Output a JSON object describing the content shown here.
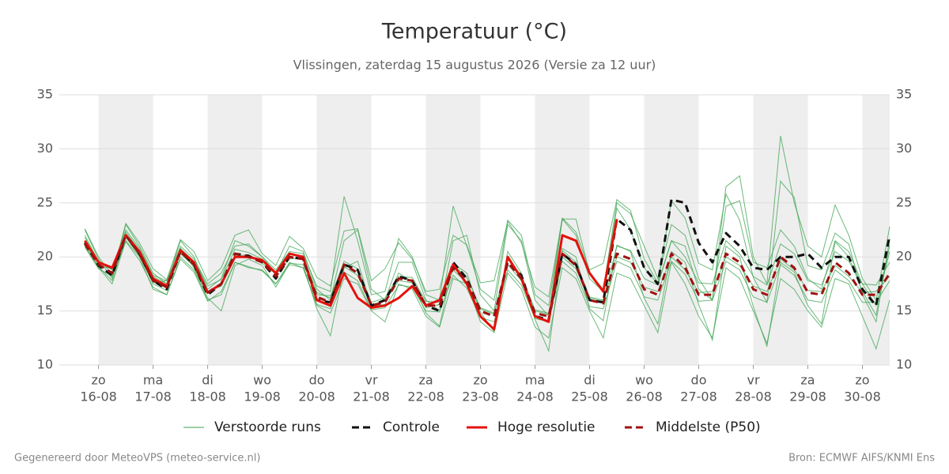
{
  "chart_data": {
    "type": "line",
    "title": "Temperatuur (°C)",
    "subtitle": "Vlissingen, zaterdag 15 augustus 2026 (Versie za 12 uur)",
    "footer_left": "Gegenereerd door MeteoVPS (meteo-service.nl)",
    "footer_right": "Bron: ECMWF AIFS/KNMI Ens",
    "x": [
      "15-08 18:00",
      "16-08 00:00",
      "16-08 06:00",
      "16-08 12:00",
      "16-08 18:00",
      "17-08 00:00",
      "17-08 06:00",
      "17-08 12:00",
      "17-08 18:00",
      "18-08 00:00",
      "18-08 06:00",
      "18-08 12:00",
      "18-08 18:00",
      "19-08 00:00",
      "19-08 06:00",
      "19-08 12:00",
      "19-08 18:00",
      "20-08 00:00",
      "20-08 06:00",
      "20-08 12:00",
      "20-08 18:00",
      "21-08 00:00",
      "21-08 06:00",
      "21-08 12:00",
      "21-08 18:00",
      "22-08 00:00",
      "22-08 06:00",
      "22-08 12:00",
      "22-08 18:00",
      "23-08 00:00",
      "23-08 06:00",
      "23-08 12:00",
      "23-08 18:00",
      "24-08 00:00",
      "24-08 06:00",
      "24-08 12:00",
      "24-08 18:00",
      "25-08 00:00",
      "25-08 06:00",
      "25-08 12:00",
      "25-08 18:00",
      "26-08 00:00",
      "26-08 06:00",
      "26-08 12:00",
      "26-08 18:00",
      "27-08 00:00",
      "27-08 06:00",
      "27-08 12:00",
      "27-08 18:00",
      "28-08 00:00",
      "28-08 06:00",
      "28-08 12:00",
      "28-08 18:00",
      "29-08 00:00",
      "29-08 06:00",
      "29-08 12:00",
      "29-08 18:00",
      "30-08 00:00",
      "30-08 06:00",
      "30-08 12:00"
    ],
    "xlim": [
      "15-08 06:45",
      "30-08 12:00"
    ],
    "xticks": [
      {
        "value": "16-08 00:00",
        "label": [
          "zo",
          "16-08"
        ]
      },
      {
        "value": "17-08 00:00",
        "label": [
          "ma",
          "17-08"
        ]
      },
      {
        "value": "18-08 00:00",
        "label": [
          "di",
          "18-08"
        ]
      },
      {
        "value": "19-08 00:00",
        "label": [
          "wo",
          "19-08"
        ]
      },
      {
        "value": "20-08 00:00",
        "label": [
          "do",
          "20-08"
        ]
      },
      {
        "value": "21-08 00:00",
        "label": [
          "vr",
          "21-08"
        ]
      },
      {
        "value": "22-08 00:00",
        "label": [
          "za",
          "22-08"
        ]
      },
      {
        "value": "23-08 00:00",
        "label": [
          "zo",
          "23-08"
        ]
      },
      {
        "value": "24-08 00:00",
        "label": [
          "ma",
          "24-08"
        ]
      },
      {
        "value": "25-08 00:00",
        "label": [
          "di",
          "25-08"
        ]
      },
      {
        "value": "26-08 00:00",
        "label": [
          "wo",
          "26-08"
        ]
      },
      {
        "value": "27-08 00:00",
        "label": [
          "do",
          "27-08"
        ]
      },
      {
        "value": "28-08 00:00",
        "label": [
          "vr",
          "28-08"
        ]
      },
      {
        "value": "29-08 00:00",
        "label": [
          "za",
          "29-08"
        ]
      },
      {
        "value": "30-08 00:00",
        "label": [
          "zo",
          "30-08"
        ]
      }
    ],
    "ylim": [
      10,
      35
    ],
    "yticks": [
      10,
      15,
      20,
      25,
      30,
      35
    ],
    "grid": true,
    "ensemble": {
      "name": "Verstoorde runs",
      "color": "#3aa34f",
      "members": [
        [
          22.5,
          19.8,
          18,
          23,
          21,
          18.5,
          17.5,
          21.5,
          20,
          17,
          18,
          21.5,
          21,
          20,
          18.5,
          21,
          20.5,
          17,
          16,
          21.5,
          22.5,
          17,
          16,
          19.5,
          19.5,
          16,
          15,
          21.5,
          22,
          16.5,
          15,
          23,
          21.5,
          16,
          14.5,
          23.5,
          23.5,
          18.5,
          17,
          25,
          24,
          21,
          18,
          23,
          22,
          18,
          16,
          26.5,
          27.5,
          20,
          17.5,
          31.2,
          25,
          21,
          20,
          24.8,
          22,
          18,
          16,
          22.8
        ],
        [
          21,
          19,
          17.5,
          21.5,
          20,
          17,
          16.5,
          20,
          18.8,
          16,
          16.5,
          19.5,
          19,
          18.8,
          17.5,
          19.5,
          19,
          15.5,
          14.8,
          18,
          17.5,
          15,
          14,
          17.5,
          17,
          14.5,
          13.5,
          18,
          17.5,
          14,
          13,
          18.5,
          17,
          13.5,
          12.5,
          19,
          18,
          15,
          12.5,
          18.5,
          18,
          15.5,
          13,
          19.5,
          17.5,
          14.5,
          12.5,
          19,
          18,
          15,
          12,
          18,
          17,
          15,
          13.5,
          18,
          17.5,
          14.5,
          11.5,
          16
        ],
        [
          21.8,
          19.5,
          19,
          22.5,
          20.8,
          18.3,
          17.8,
          21,
          19.8,
          17.5,
          18.5,
          21,
          21.2,
          20,
          18.8,
          20.5,
          20.3,
          17.3,
          16.8,
          25.6,
          21.5,
          16.5,
          16.8,
          21.7,
          20,
          16.5,
          16,
          24.7,
          21,
          17,
          16,
          23.4,
          22,
          16.5,
          15.5,
          23.5,
          22,
          18,
          16.8,
          24.5,
          22.5,
          19,
          17.5,
          21.5,
          21,
          17,
          16,
          24.7,
          25.2,
          19.5,
          19,
          22.5,
          21,
          18,
          17,
          21.5,
          20.5,
          17.5,
          15.5,
          20.5
        ],
        [
          21.4,
          19.1,
          17.8,
          21.8,
          20.1,
          17.5,
          16.9,
          20.8,
          19,
          16.2,
          15,
          19.2,
          19.8,
          19.2,
          17.2,
          19.4,
          19.3,
          15.2,
          12.7,
          19,
          19.6,
          15.4,
          15.6,
          18.5,
          17.7,
          14.8,
          13.6,
          19.4,
          18.5,
          14.9,
          13.1,
          20.5,
          18.5,
          14.2,
          11.3,
          20.8,
          20,
          15.2,
          14.1,
          21.1,
          20.5,
          16.2,
          13.8,
          20.5,
          19.5,
          15.6,
          12.3,
          21,
          20,
          15.4,
          11.7,
          19.5,
          18.6,
          15.5,
          13.8,
          21.4,
          20,
          16.8,
          14.6,
          21.1
        ],
        [
          22,
          19.6,
          18.8,
          22.3,
          20.6,
          18.2,
          17.5,
          20.8,
          19.6,
          17.3,
          17.9,
          20.7,
          20.4,
          19.8,
          18.6,
          20.2,
          20.1,
          16.7,
          16.2,
          19.6,
          18.9,
          15.8,
          16.2,
          18.2,
          18.1,
          15.9,
          15.8,
          19.3,
          18.1,
          15.3,
          14.8,
          19.8,
          18.3,
          15.1,
          14.8,
          20.6,
          19.5,
          16.3,
          16,
          21,
          20.6,
          18,
          17.4,
          21.5,
          20,
          17.6,
          17.5,
          21.5,
          20.3,
          18.2,
          17.4,
          21.2,
          20.3,
          17.8,
          17.4,
          20.5,
          19.6,
          17.5,
          17.4,
          19.5
        ],
        [
          20.9,
          18.9,
          18.2,
          21.4,
          19.7,
          17.2,
          16.5,
          19.8,
          18.6,
          15.9,
          16.8,
          19.5,
          19.1,
          18.7,
          17.5,
          19.3,
          19,
          15.6,
          15.2,
          18.6,
          17.8,
          15.1,
          15.3,
          17.4,
          17.2,
          15,
          14.9,
          18.3,
          17.1,
          14.4,
          14,
          18.8,
          17.4,
          14.3,
          14,
          19.6,
          18.5,
          15.4,
          15.2,
          19.6,
          19,
          16.3,
          16,
          19.6,
          18.4,
          15.9,
          16,
          19.6,
          18.8,
          16.3,
          15.8,
          19.3,
          18.3,
          16,
          15.8,
          18.8,
          17.8,
          15.8,
          15.8,
          17.8
        ],
        [
          22.6,
          20,
          18.3,
          23.1,
          21.3,
          18.9,
          17.9,
          21.6,
          20.5,
          17.8,
          19,
          22,
          22.5,
          20.3,
          19.2,
          21.9,
          20.8,
          18.1,
          17.3,
          22.4,
          22.6,
          17.8,
          18.9,
          21.3,
          19.8,
          16.8,
          17,
          22,
          21.1,
          17.6,
          17.8,
          23.3,
          21.3,
          17.2,
          16.3,
          23.6,
          22.3,
          18.8,
          19.4,
          25.3,
          24.3,
          19.8,
          17.6,
          25.2,
          23.6,
          19.4,
          18.8,
          25.8,
          23.4,
          18.1,
          15.8,
          27,
          25.5,
          19.2,
          18.8,
          22.2,
          21.2,
          16.5,
          14,
          21.7
        ],
        [
          21.1,
          19.2,
          18.9,
          21.9,
          20.3,
          17.6,
          17.8,
          20.3,
          19.1,
          16.8,
          17.3,
          20.1,
          20.2,
          19.4,
          18.4,
          19.8,
          19.9,
          16.5,
          16.4,
          19.1,
          18.3,
          15.6,
          15.9,
          17.8,
          17.6,
          15.3,
          15.6,
          18.8,
          17.6,
          15.2,
          14.7,
          19.3,
          17.8,
          15,
          14.7,
          20,
          18.9,
          16.2,
          15.9,
          20,
          19.5,
          17.2,
          16.8,
          20,
          18.8,
          16.7,
          16.8,
          20,
          19.2,
          17.3,
          16.8,
          19.8,
          18.8,
          16.9,
          16.8,
          19.2,
          18.2,
          16.7,
          16.8,
          18.2
        ]
      ]
    },
    "series": [
      {
        "name": "Controle",
        "color": "#111111",
        "dash": true,
        "values": [
          21.3,
          19.2,
          18.3,
          22,
          20.3,
          17.8,
          17,
          20.5,
          19.3,
          16.5,
          17.5,
          20.3,
          20.1,
          19.5,
          18,
          20,
          19.8,
          16,
          15.8,
          19.3,
          18.8,
          15.5,
          16,
          18.2,
          17.8,
          15.5,
          15,
          19.5,
          18,
          15,
          14.5,
          19.5,
          18.3,
          14.5,
          14.2,
          20.3,
          19.3,
          16,
          15.8,
          23.5,
          22.5,
          19,
          17.5,
          25.3,
          25,
          21.3,
          19.5,
          22.2,
          21,
          19,
          18.8,
          20,
          20,
          20.3,
          19,
          20,
          20,
          17,
          15.5,
          22
        ]
      },
      {
        "name": "Hoge resolutie",
        "color": "#e3120b",
        "dash": false,
        "values": [
          21.5,
          19.5,
          19,
          22,
          20.5,
          18,
          17.3,
          20.6,
          19.5,
          16.7,
          17.5,
          20,
          20,
          19.7,
          18.5,
          20.3,
          20,
          16,
          15.5,
          18.5,
          16.2,
          15.3,
          15.5,
          16.2,
          17.3,
          15.5,
          16,
          19.3,
          17.5,
          14.5,
          13.3,
          20,
          18,
          14.5,
          14,
          22,
          21.5,
          18.5,
          16.8,
          23.5,
          null,
          null,
          null,
          null,
          null,
          null,
          null,
          null,
          null,
          null,
          null,
          null,
          null,
          null,
          null,
          null,
          null,
          null,
          null,
          null
        ]
      },
      {
        "name": "Middelste (P50)",
        "color": "#a01010",
        "dash": true,
        "values": [
          21.2,
          19.3,
          18.5,
          22,
          20.3,
          17.8,
          17.2,
          20.5,
          19.3,
          16.7,
          17.5,
          20.3,
          20,
          19.5,
          18.2,
          20,
          19.8,
          16.3,
          15.8,
          19.3,
          18.5,
          15.5,
          15.8,
          18,
          17.8,
          15.5,
          15.5,
          19,
          17.8,
          15,
          14.5,
          19.5,
          18,
          14.8,
          14.5,
          20.3,
          19.2,
          16,
          15.7,
          20.3,
          19.8,
          17,
          16.5,
          20.3,
          19,
          16.5,
          16.5,
          20.3,
          19.5,
          17,
          16.5,
          20,
          19,
          16.7,
          16.5,
          19.5,
          18.5,
          16.5,
          16.5,
          18.5
        ]
      }
    ]
  }
}
